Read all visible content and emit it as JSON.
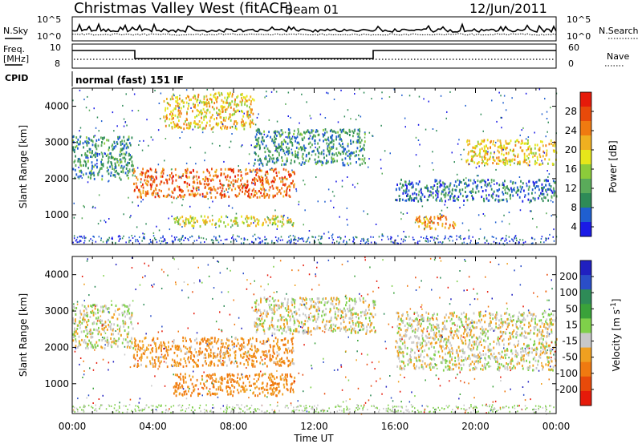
{
  "header": {
    "title": "Christmas Valley West (fitACF)",
    "beam": "Beam 01",
    "date": "12/Jun/2011"
  },
  "noise_panel": {
    "left_label": "N.Sky",
    "right_label": "N.Search",
    "left_ticks": [
      "10^5",
      "10^0"
    ],
    "right_ticks": [
      "10^5",
      "10^0"
    ]
  },
  "freq_panel": {
    "left_label_line1": "Freq.",
    "left_label_line2": "[MHz]",
    "left_ticks": [
      "10",
      "8"
    ],
    "right_label": "Nave",
    "right_ticks": [
      "60",
      "0"
    ]
  },
  "cpid": {
    "label": "CPID",
    "value": "normal (fast) 151 IF"
  },
  "chart_data": [
    {
      "type": "heatmap",
      "title": "",
      "xlabel": "",
      "ylabel": "Slant Range [km]",
      "x_ticks": [
        "00:00",
        "04:00",
        "08:00",
        "12:00",
        "16:00",
        "20:00",
        "00:00"
      ],
      "y_ticks": [
        1000,
        2000,
        3000,
        4000
      ],
      "xlim": [
        0,
        24
      ],
      "ylim": [
        180,
        4500
      ],
      "colorbar": {
        "label": "Power [dB]",
        "ticks": [
          4,
          8,
          12,
          16,
          20,
          24,
          28
        ],
        "colors": [
          "#1a1ae6",
          "#1f5fd0",
          "#2e8b57",
          "#5aab5a",
          "#8ccc3a",
          "#e6e61a",
          "#f0b020",
          "#f07a10",
          "#e84a0a",
          "#e61a0a"
        ]
      },
      "features": [
        {
          "hours": [
            0.0,
            3.0
          ],
          "range_km": [
            2000,
            3200
          ],
          "db": 10
        },
        {
          "hours": [
            3.0,
            11.0
          ],
          "range_km": [
            1500,
            2300
          ],
          "db": 26
        },
        {
          "hours": [
            4.5,
            9.0
          ],
          "range_km": [
            3400,
            4400
          ],
          "db": 20
        },
        {
          "hours": [
            9.0,
            14.5
          ],
          "range_km": [
            2400,
            3400
          ],
          "db": 10
        },
        {
          "hours": [
            5.0,
            11.0
          ],
          "range_km": [
            700,
            1000
          ],
          "db": 18
        },
        {
          "hours": [
            16.0,
            24.0
          ],
          "range_km": [
            1400,
            2000
          ],
          "db": 8
        },
        {
          "hours": [
            17.0,
            19.0
          ],
          "range_km": [
            600,
            1000
          ],
          "db": 24
        },
        {
          "hours": [
            19.5,
            24.0
          ],
          "range_km": [
            2400,
            3100
          ],
          "db": 20
        }
      ]
    },
    {
      "type": "heatmap",
      "title": "",
      "xlabel": "Time UT",
      "ylabel": "Slant Range [km]",
      "x_ticks": [
        "00:00",
        "04:00",
        "08:00",
        "12:00",
        "16:00",
        "20:00",
        "00:00"
      ],
      "y_ticks": [
        1000,
        2000,
        3000,
        4000
      ],
      "xlim": [
        0,
        24
      ],
      "ylim": [
        180,
        4500
      ],
      "colorbar": {
        "label": "Velocity [m s^-1]",
        "ticks": [
          200,
          100,
          50,
          15,
          -15,
          -50,
          -100,
          -200
        ],
        "colors": [
          "#2020c0",
          "#2a4ec8",
          "#2e8b57",
          "#3aa23a",
          "#7fd04a",
          "#c8c8c8",
          "#f0a020",
          "#f07a10",
          "#e84a0a",
          "#e61a0a"
        ]
      },
      "features": [
        {
          "hours": [
            0.0,
            3.0
          ],
          "range_km": [
            2000,
            3200
          ],
          "vel": 0
        },
        {
          "hours": [
            3.0,
            11.0
          ],
          "range_km": [
            1500,
            2300
          ],
          "vel": -40
        },
        {
          "hours": [
            5.0,
            11.0
          ],
          "range_km": [
            700,
            1300
          ],
          "vel": -60
        },
        {
          "hours": [
            9.0,
            15.0
          ],
          "range_km": [
            2400,
            3400
          ],
          "vel": 0
        },
        {
          "hours": [
            16.0,
            24.0
          ],
          "range_km": [
            1400,
            3000
          ],
          "vel": 0
        }
      ]
    }
  ]
}
